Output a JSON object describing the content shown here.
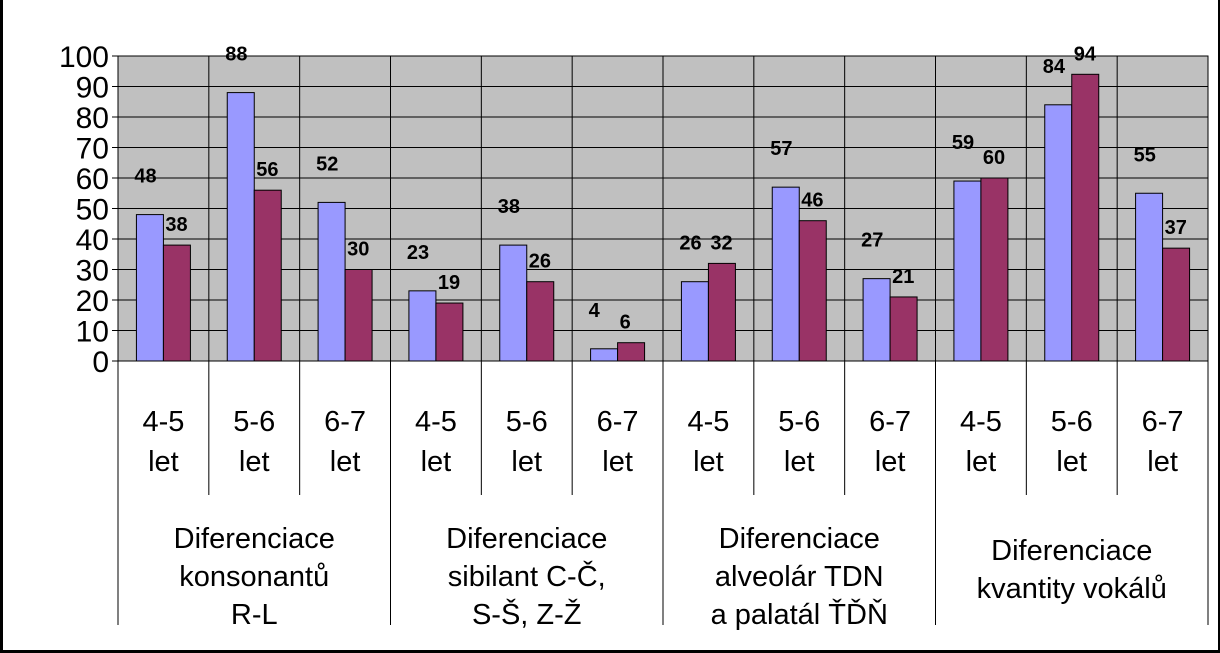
{
  "chart_data": {
    "type": "bar",
    "ylim": [
      0,
      100
    ],
    "yticks": [
      "0",
      "10",
      "20",
      "30",
      "40",
      "50",
      "60",
      "70",
      "80",
      "90",
      "100"
    ],
    "grid": true,
    "categories": [
      {
        "label": [
          "4-5",
          "let"
        ],
        "values": [
          48,
          38
        ]
      },
      {
        "label": [
          "5-6",
          "let"
        ],
        "values": [
          88,
          56
        ]
      },
      {
        "label": [
          "6-7",
          "let"
        ],
        "values": [
          52,
          30
        ]
      },
      {
        "label": [
          "4-5",
          "let"
        ],
        "values": [
          23,
          19
        ]
      },
      {
        "label": [
          "5-6",
          "let"
        ],
        "values": [
          38,
          26
        ]
      },
      {
        "label": [
          "6-7",
          "let"
        ],
        "values": [
          4,
          6
        ]
      },
      {
        "label": [
          "4-5",
          "let"
        ],
        "values": [
          26,
          32
        ]
      },
      {
        "label": [
          "5-6",
          "let"
        ],
        "values": [
          57,
          46
        ]
      },
      {
        "label": [
          "6-7",
          "let"
        ],
        "values": [
          27,
          21
        ]
      },
      {
        "label": [
          "4-5",
          "let"
        ],
        "values": [
          59,
          60
        ]
      },
      {
        "label": [
          "5-6",
          "let"
        ],
        "values": [
          84,
          94
        ]
      },
      {
        "label": [
          "6-7",
          "let"
        ],
        "values": [
          55,
          37
        ]
      }
    ],
    "groups": [
      {
        "lines": [
          "Diferenciace",
          "konsonantů",
          "R-L"
        ],
        "span": 3
      },
      {
        "lines": [
          "Diferenciace",
          "sibilant C-Č,",
          "S-Š, Z-Ž"
        ],
        "span": 3
      },
      {
        "lines": [
          "Diferenciace",
          "alveolár TDN",
          "a palatál ŤĎŇ"
        ],
        "span": 3
      },
      {
        "lines": [
          "Diferenciace",
          "kvantity vokálů"
        ],
        "span": 3
      }
    ],
    "series_colors": [
      "#9999ff",
      "#993366"
    ],
    "plot_background": "#c0c0c0"
  }
}
